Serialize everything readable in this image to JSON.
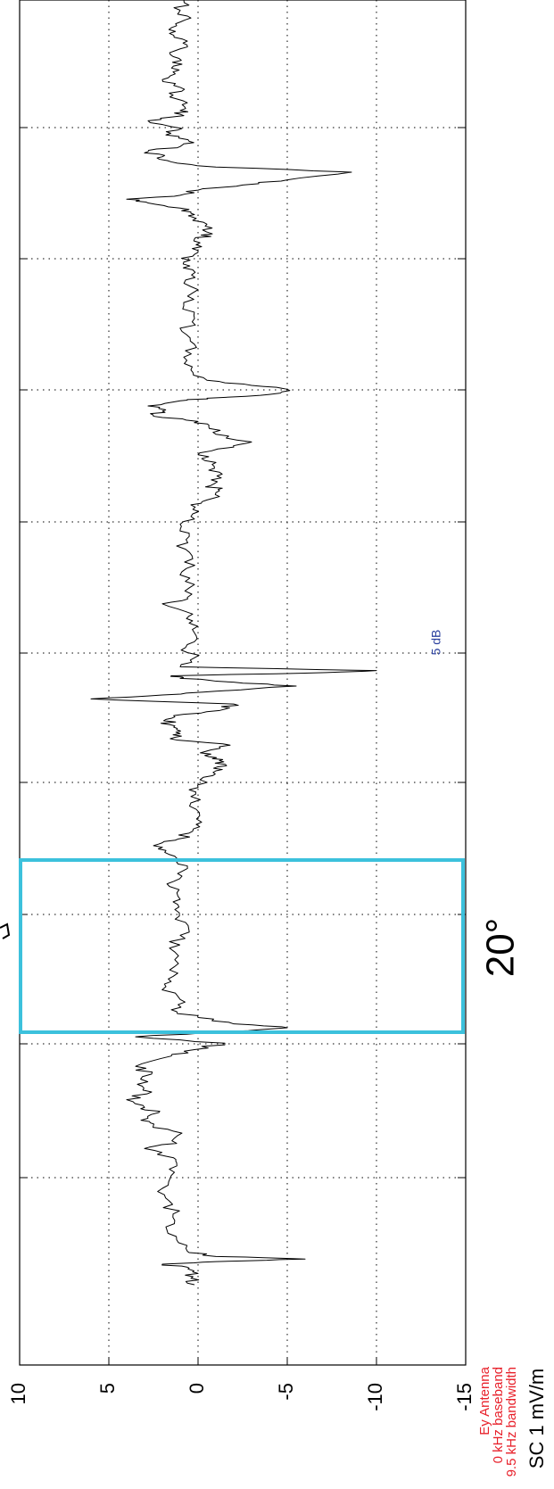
{
  "chart_data": {
    "type": "line",
    "orientation": "rotated-90-ccw",
    "title": "",
    "ylabel": "SC 1 mV/m",
    "xlabel": "",
    "ylim": [
      -15,
      10
    ],
    "yticks": [
      {
        "value": 10,
        "label": "10"
      },
      {
        "value": 5,
        "label": "5"
      },
      {
        "value": 0,
        "label": "0"
      },
      {
        "value": -5,
        "label": "-5"
      },
      {
        "value": -10,
        "label": "-10"
      },
      {
        "value": -15,
        "label": "-15"
      }
    ],
    "grid": true,
    "annotations": {
      "scale_label": "5 dB",
      "antenna_lines": [
        "Ey Antenna",
        "0 kHz baseband",
        "9.5 kHz bandwidth"
      ],
      "highlight_label": "20°"
    },
    "colors": {
      "line": "#000000",
      "highlight_box": "#3cc1dc",
      "scale_label": "#2a3f9e",
      "antenna_text": "#e8212b"
    },
    "series": [
      {
        "keypoints": [
          [
            0.0,
            0.2
          ],
          [
            0.005,
            0.4
          ],
          [
            0.01,
            0.3
          ],
          [
            0.013,
            0.5
          ],
          [
            0.016,
            2.0
          ],
          [
            0.018,
            -1.0
          ],
          [
            0.02,
            -6.0
          ],
          [
            0.022,
            -1.0
          ],
          [
            0.026,
            0.6
          ],
          [
            0.035,
            1.2
          ],
          [
            0.045,
            1.8
          ],
          [
            0.055,
            1.4
          ],
          [
            0.065,
            1.6
          ],
          [
            0.075,
            2.0
          ],
          [
            0.085,
            1.5
          ],
          [
            0.095,
            1.2
          ],
          [
            0.1,
            1.8
          ],
          [
            0.106,
            3.0
          ],
          [
            0.11,
            1.2
          ],
          [
            0.118,
            0.9
          ],
          [
            0.124,
            2.5
          ],
          [
            0.128,
            3.2
          ],
          [
            0.134,
            2.2
          ],
          [
            0.138,
            3.0
          ],
          [
            0.144,
            4.0
          ],
          [
            0.15,
            2.6
          ],
          [
            0.156,
            3.4
          ],
          [
            0.164,
            2.6
          ],
          [
            0.17,
            3.5
          ],
          [
            0.178,
            1.5
          ],
          [
            0.183,
            0.2
          ],
          [
            0.188,
            -1.5
          ],
          [
            0.193,
            3.5
          ],
          [
            0.197,
            -1.5
          ],
          [
            0.2,
            -5.0
          ],
          [
            0.203,
            -2.0
          ],
          [
            0.208,
            0.0
          ],
          [
            0.214,
            1.5
          ],
          [
            0.222,
            1.0
          ],
          [
            0.232,
            1.8
          ],
          [
            0.24,
            1.4
          ],
          [
            0.25,
            1.1
          ],
          [
            0.262,
            1.6
          ],
          [
            0.272,
            1.0
          ],
          [
            0.282,
            0.7
          ],
          [
            0.292,
            1.3
          ],
          [
            0.3,
            1.0
          ],
          [
            0.31,
            1.6
          ],
          [
            0.318,
            0.9
          ],
          [
            0.326,
            0.6
          ],
          [
            0.332,
            1.2
          ],
          [
            0.338,
            1.8
          ],
          [
            0.343,
            2.2
          ],
          [
            0.347,
            1.1
          ],
          [
            0.353,
            0.3
          ],
          [
            0.36,
            -0.2
          ],
          [
            0.37,
            0.1
          ],
          [
            0.38,
            0.4
          ],
          [
            0.387,
            0.0
          ],
          [
            0.395,
            -0.3
          ],
          [
            0.4,
            -1.0
          ],
          [
            0.404,
            -1.6
          ],
          [
            0.408,
            -1.2
          ],
          [
            0.411,
            -0.6
          ],
          [
            0.415,
            -0.4
          ],
          [
            0.42,
            -1.8
          ],
          [
            0.424,
            1.2
          ],
          [
            0.428,
            1.4
          ],
          [
            0.432,
            1.2
          ],
          [
            0.436,
            1.6
          ],
          [
            0.44,
            1.8
          ],
          [
            0.444,
            0.8
          ],
          [
            0.448,
            -1.5
          ],
          [
            0.452,
            -2.0
          ],
          [
            0.456,
            6.0
          ],
          [
            0.459,
            2.0
          ],
          [
            0.462,
            -1.0
          ],
          [
            0.466,
            -5.5
          ],
          [
            0.469,
            -2.0
          ],
          [
            0.472,
            1.0
          ],
          [
            0.474,
            1.5
          ],
          [
            0.476,
            -6.0
          ],
          [
            0.478,
            -10.0
          ],
          [
            0.481,
            1.0
          ],
          [
            0.488,
            0.2
          ],
          [
            0.496,
            0.7
          ],
          [
            0.505,
            0.1
          ],
          [
            0.515,
            0.5
          ],
          [
            0.522,
            0.3
          ],
          [
            0.53,
            2.0
          ],
          [
            0.535,
            0.6
          ],
          [
            0.545,
            0.2
          ],
          [
            0.555,
            0.9
          ],
          [
            0.565,
            0.3
          ],
          [
            0.575,
            1.2
          ],
          [
            0.585,
            0.5
          ],
          [
            0.592,
            1.0
          ],
          [
            0.6,
            0.3
          ],
          [
            0.607,
            0.4
          ],
          [
            0.612,
            -0.8
          ],
          [
            0.618,
            -1.2
          ],
          [
            0.622,
            -0.7
          ],
          [
            0.628,
            -1.3
          ],
          [
            0.634,
            -0.6
          ],
          [
            0.64,
            -1.0
          ],
          [
            0.646,
            0.0
          ],
          [
            0.652,
            -2.0
          ],
          [
            0.656,
            -3.0
          ],
          [
            0.662,
            -1.0
          ],
          [
            0.668,
            -0.6
          ],
          [
            0.672,
            0.0
          ],
          [
            0.676,
            2.5
          ],
          [
            0.68,
            2.0
          ],
          [
            0.684,
            2.8
          ],
          [
            0.688,
            1.0
          ],
          [
            0.69,
            -0.5
          ],
          [
            0.693,
            -4.0
          ],
          [
            0.697,
            -5.0
          ],
          [
            0.7,
            -3.0
          ],
          [
            0.704,
            -0.5
          ],
          [
            0.712,
            0.4
          ],
          [
            0.722,
            0.8
          ],
          [
            0.732,
            0.2
          ],
          [
            0.742,
            0.9
          ],
          [
            0.752,
            0.2
          ],
          [
            0.762,
            0.8
          ],
          [
            0.772,
            0.3
          ],
          [
            0.782,
            0.7
          ],
          [
            0.79,
            0.3
          ],
          [
            0.796,
            0.8
          ],
          [
            0.802,
            0.2
          ],
          [
            0.808,
            -0.2
          ],
          [
            0.814,
            0.2
          ],
          [
            0.818,
            -0.8
          ],
          [
            0.824,
            -0.4
          ],
          [
            0.83,
            0.1
          ],
          [
            0.834,
            0.4
          ],
          [
            0.838,
            1.0
          ],
          [
            0.842,
            2.8
          ],
          [
            0.845,
            4.0
          ],
          [
            0.848,
            1.0
          ],
          [
            0.852,
            0.0
          ],
          [
            0.856,
            -2.5
          ],
          [
            0.86,
            -5.0
          ],
          [
            0.866,
            -8.6
          ],
          [
            0.87,
            -1.0
          ],
          [
            0.874,
            1.5
          ],
          [
            0.878,
            2.0
          ],
          [
            0.882,
            2.8
          ],
          [
            0.886,
            1.0
          ],
          [
            0.89,
            0.5
          ],
          [
            0.895,
            1.8
          ],
          [
            0.9,
            0.9
          ],
          [
            0.906,
            2.8
          ],
          [
            0.91,
            0.8
          ],
          [
            0.914,
            1.0
          ],
          [
            0.92,
            0.6
          ],
          [
            0.926,
            1.4
          ],
          [
            0.932,
            1.0
          ],
          [
            0.938,
            2.0
          ],
          [
            0.944,
            1.4
          ],
          [
            0.95,
            0.9
          ],
          [
            0.956,
            1.4
          ],
          [
            0.962,
            1.0
          ],
          [
            0.968,
            0.6
          ],
          [
            0.974,
            1.6
          ],
          [
            0.98,
            1.2
          ],
          [
            0.986,
            0.4
          ],
          [
            0.992,
            1.0
          ],
          [
            1.0,
            0.8
          ]
        ],
        "upper_segment_keypoints": [
          [
            0.0,
            0.8
          ],
          [
            0.01,
            0.4
          ],
          [
            0.02,
            0.9
          ],
          [
            0.03,
            0.5
          ],
          [
            0.04,
            1.2
          ],
          [
            0.05,
            0.6
          ],
          [
            0.06,
            0.9
          ],
          [
            0.07,
            0.4
          ],
          [
            0.08,
            0.7
          ],
          [
            0.085,
            -0.8
          ],
          [
            0.09,
            0.6
          ],
          [
            0.1,
            1.0
          ],
          [
            0.11,
            0.8
          ],
          [
            0.12,
            0.6
          ],
          [
            0.13,
            0.9
          ],
          [
            0.14,
            0.5
          ],
          [
            0.15,
            1.0
          ],
          [
            0.16,
            0.4
          ],
          [
            0.17,
            0.9
          ],
          [
            0.18,
            0.6
          ],
          [
            0.19,
            0.8
          ],
          [
            0.2,
            0.4
          ],
          [
            0.205,
            -1.5
          ],
          [
            0.21,
            -2.0
          ],
          [
            0.215,
            0.4
          ],
          [
            0.225,
            0.9
          ],
          [
            0.235,
            0.5
          ],
          [
            0.245,
            1.2
          ],
          [
            0.255,
            0.6
          ],
          [
            0.265,
            1.0
          ],
          [
            0.275,
            0.5
          ],
          [
            0.285,
            0.8
          ],
          [
            0.295,
            0.4
          ],
          [
            0.305,
            0.9
          ],
          [
            0.315,
            0.5
          ],
          [
            0.325,
            1.0
          ],
          [
            0.335,
            0.4
          ],
          [
            0.345,
            0.7
          ],
          [
            0.355,
            0.3
          ],
          [
            0.365,
            0.8
          ],
          [
            0.375,
            0.4
          ],
          [
            0.385,
            1.0
          ],
          [
            0.395,
            0.6
          ],
          [
            0.405,
            1.2
          ],
          [
            0.415,
            0.8
          ],
          [
            0.425,
            1.0
          ],
          [
            0.435,
            0.4
          ],
          [
            0.445,
            0.8
          ],
          [
            0.455,
            0.5
          ],
          [
            0.465,
            0.9
          ],
          [
            0.475,
            0.6
          ],
          [
            0.485,
            1.0
          ],
          [
            0.495,
            0.5
          ],
          [
            0.505,
            1.4
          ],
          [
            0.515,
            0.8
          ],
          [
            0.525,
            1.0
          ],
          [
            0.535,
            0.6
          ],
          [
            0.545,
            1.0
          ],
          [
            0.55,
            2.5
          ],
          [
            0.553,
            1.5
          ],
          [
            0.556,
            3.2
          ],
          [
            0.56,
            0.5
          ],
          [
            0.565,
            0.2
          ],
          [
            0.572,
            1.2
          ],
          [
            0.58,
            0.6
          ],
          [
            0.59,
            1.0
          ],
          [
            0.6,
            0.4
          ],
          [
            0.61,
            0.9
          ],
          [
            0.62,
            0.5
          ],
          [
            0.63,
            1.0
          ],
          [
            0.64,
            0.6
          ],
          [
            0.65,
            0.9
          ],
          [
            0.66,
            0.5
          ],
          [
            0.67,
            1.0
          ],
          [
            0.68,
            0.6
          ],
          [
            0.69,
            0.9
          ],
          [
            0.7,
            0.5
          ],
          [
            0.71,
            1.0
          ],
          [
            0.72,
            0.5
          ],
          [
            0.73,
            0.8
          ],
          [
            0.74,
            0.4
          ],
          [
            0.75,
            0.9
          ],
          [
            0.76,
            0.5
          ],
          [
            0.77,
            1.0
          ],
          [
            0.78,
            0.6
          ],
          [
            0.79,
            0.9
          ],
          [
            0.8,
            0.5
          ],
          [
            0.81,
            1.0
          ],
          [
            0.82,
            0.6
          ],
          [
            0.83,
            0.9
          ],
          [
            0.84,
            0.5
          ],
          [
            0.85,
            1.0
          ],
          [
            0.86,
            0.6
          ],
          [
            0.87,
            0.9
          ],
          [
            0.88,
            0.5
          ],
          [
            0.89,
            1.0
          ],
          [
            0.9,
            0.6
          ],
          [
            0.91,
            0.9
          ],
          [
            0.92,
            0.5
          ],
          [
            0.93,
            1.0
          ],
          [
            0.94,
            0.6
          ],
          [
            0.95,
            0.9
          ],
          [
            0.96,
            0.5
          ],
          [
            0.97,
            1.0
          ],
          [
            0.98,
            0.6
          ],
          [
            0.99,
            0.9
          ],
          [
            1.0,
            0.6
          ]
        ]
      }
    ]
  }
}
